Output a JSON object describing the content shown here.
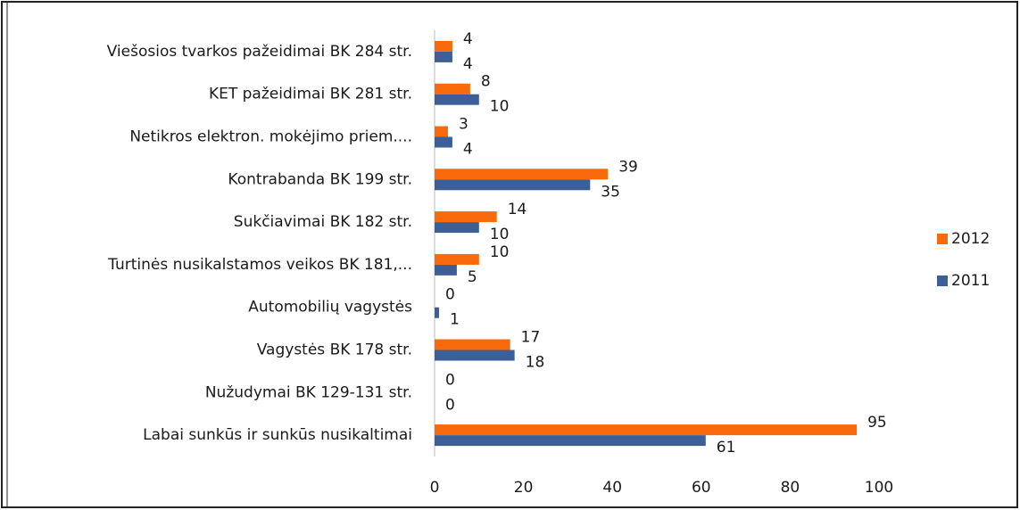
{
  "chart_data": {
    "type": "bar",
    "orientation": "horizontal",
    "categories": [
      "Viešosios tvarkos pažeidimai BK 284 str.",
      "KET pažeidimai BK 281 str.",
      "Netikros elektron. mokėjimo priem....",
      "Kontrabanda BK 199 str.",
      "Sukčiavimai BK 182 str.",
      "Turtinės nusikalstamos veikos BK 181,...",
      "Automobilių vagystės",
      "Vagystės BK 178 str.",
      "Nužudymai BK 129-131 str.",
      "Labai sunkūs ir sunkūs nusikaltimai"
    ],
    "series": [
      {
        "name": "2012",
        "color": "#f96a0c",
        "values": [
          4,
          8,
          3,
          39,
          14,
          10,
          0,
          17,
          0,
          95
        ]
      },
      {
        "name": "2011",
        "color": "#3b5f96",
        "values": [
          4,
          10,
          4,
          35,
          10,
          5,
          1,
          18,
          0,
          61
        ]
      }
    ],
    "xlim": [
      0,
      100
    ],
    "xticks": [
      0,
      20,
      40,
      60,
      80,
      100
    ],
    "grid": false,
    "legend": "right"
  }
}
